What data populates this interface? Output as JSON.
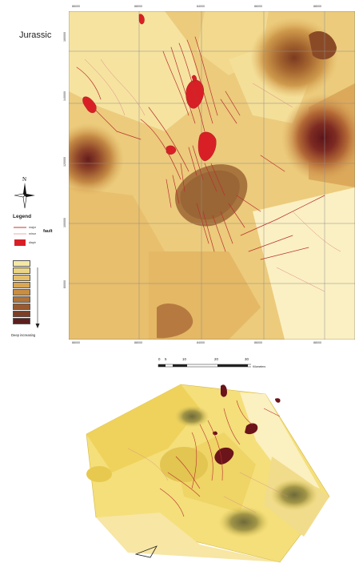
{
  "figure": {
    "title": "Jurassic"
  },
  "map": {
    "top_ticks": [
      "86000",
      "88000",
      "84000",
      "86000",
      "88000"
    ],
    "bottom_ticks": [
      "86000",
      "88000",
      "84000",
      "86000",
      "88000"
    ],
    "left_ticks": [
      "160000",
      "140000",
      "120000",
      "100000",
      "80000"
    ]
  },
  "compass": {
    "north_label": "N"
  },
  "legend": {
    "title": "Legend",
    "fault_group_label": "fault",
    "items": [
      {
        "label": "major",
        "color": "#c0392b"
      },
      {
        "label": "minor",
        "color": "#e07070"
      },
      {
        "label": "diapir",
        "color": "#d91f26"
      }
    ],
    "depth_note": "Deep increasing",
    "depth_colors": [
      "#f4e8a3",
      "#ecd486",
      "#e4bf6b",
      "#d9a652",
      "#c98e42",
      "#b17336",
      "#9a5a2e",
      "#7d3f26",
      "#5d1f1d"
    ]
  },
  "scale": {
    "labels": [
      "0",
      "5",
      "10",
      "20",
      "30"
    ],
    "unit": "Kilometers"
  },
  "colors": {
    "diapir": "#d91f26",
    "dark_basin": "#6b1419",
    "fault_line": "#b8312f"
  }
}
